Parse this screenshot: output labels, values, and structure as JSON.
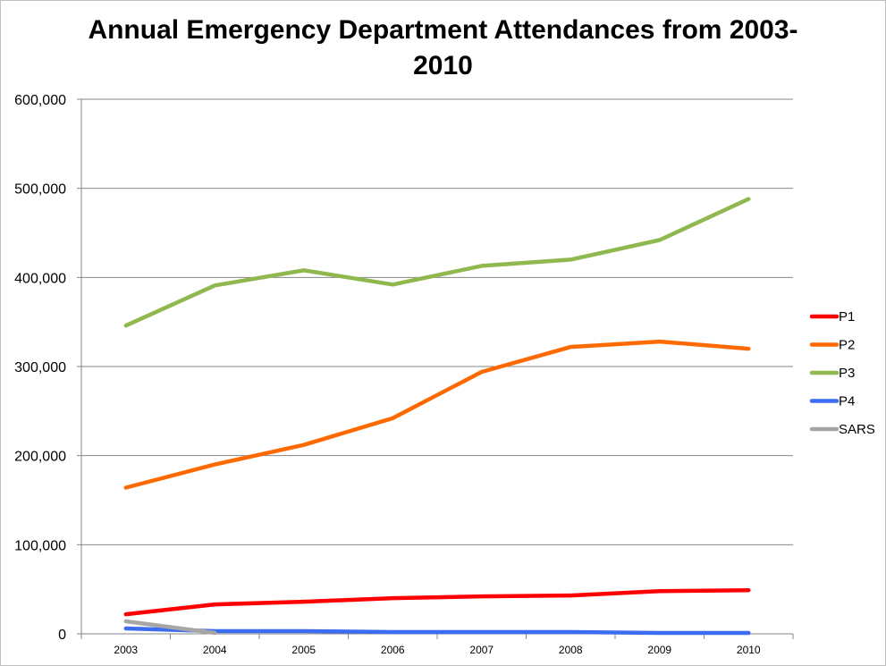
{
  "chart_data": {
    "type": "line",
    "title_line1": "Annual Emergency Department Attendances from 2003-",
    "title_line2": "2010",
    "xlabel": "",
    "ylabel": "",
    "categories": [
      "2003",
      "2004",
      "2005",
      "2006",
      "2007",
      "2008",
      "2009",
      "2010"
    ],
    "ylim": [
      0,
      600000
    ],
    "yticks": [
      0,
      100000,
      200000,
      300000,
      400000,
      500000,
      600000
    ],
    "ytick_labels": [
      "0",
      "100,000",
      "200,000",
      "300,000",
      "400,000",
      "500,000",
      "600,000"
    ],
    "grid": true,
    "legend_position": "right",
    "series": [
      {
        "name": "P1",
        "color": "#ff0000",
        "values": [
          22000,
          33000,
          36000,
          40000,
          42000,
          43000,
          48000,
          49000
        ]
      },
      {
        "name": "P2",
        "color": "#ff6a00",
        "values": [
          164000,
          190000,
          212000,
          242000,
          294000,
          322000,
          328000,
          320000
        ]
      },
      {
        "name": "P3",
        "color": "#8fb84e",
        "values": [
          346000,
          391000,
          408000,
          392000,
          413000,
          420000,
          442000,
          488000
        ]
      },
      {
        "name": "P4",
        "color": "#3c6cf0",
        "values": [
          6000,
          3000,
          3000,
          2000,
          2000,
          2000,
          1000,
          1000
        ]
      },
      {
        "name": "SARS",
        "color": "#a6a6a6",
        "values": [
          14000,
          1000,
          null,
          null,
          null,
          null,
          null,
          null
        ]
      }
    ]
  }
}
